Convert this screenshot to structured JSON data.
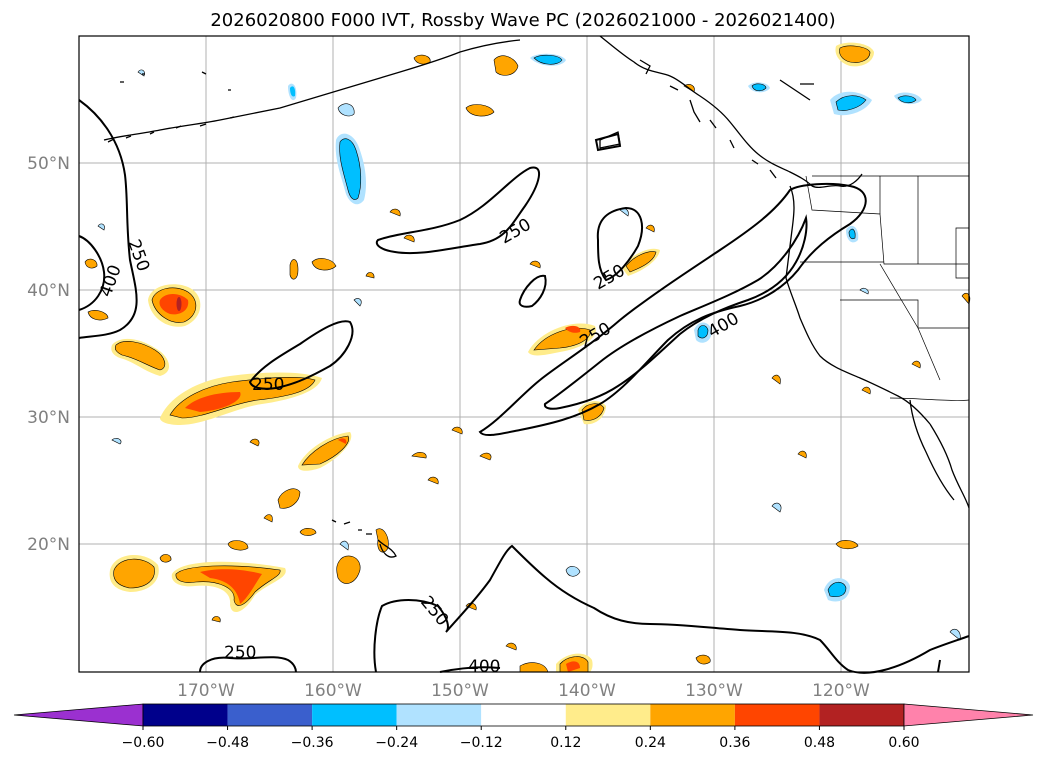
{
  "title": "2026020800 F000 IVT, Rossby Wave PC (2026021000 - 2026021400)",
  "map": {
    "lat_labels": [
      "50°N",
      "40°N",
      "30°N",
      "20°N"
    ],
    "lon_labels": [
      "170°W",
      "160°W",
      "150°W",
      "140°W",
      "130°W",
      "120°W"
    ],
    "contour_levels": [
      "250",
      "400"
    ],
    "contour_label_list": [
      "250",
      "400",
      "250",
      "250",
      "250",
      "400",
      "250",
      "250",
      "250",
      "400"
    ]
  },
  "colorbar": {
    "ticks": [
      "−0.60",
      "−0.48",
      "−0.36",
      "−0.24",
      "−0.12",
      "0.12",
      "0.24",
      "0.36",
      "0.48",
      "0.60"
    ],
    "colors": [
      "#9b30d0",
      "#00008b",
      "#3a5fcd",
      "#00bfff",
      "#b0e2ff",
      "#ffffff",
      "#ffec8b",
      "#ffa500",
      "#ff4500",
      "#b22222",
      "#ff82ab"
    ]
  }
}
